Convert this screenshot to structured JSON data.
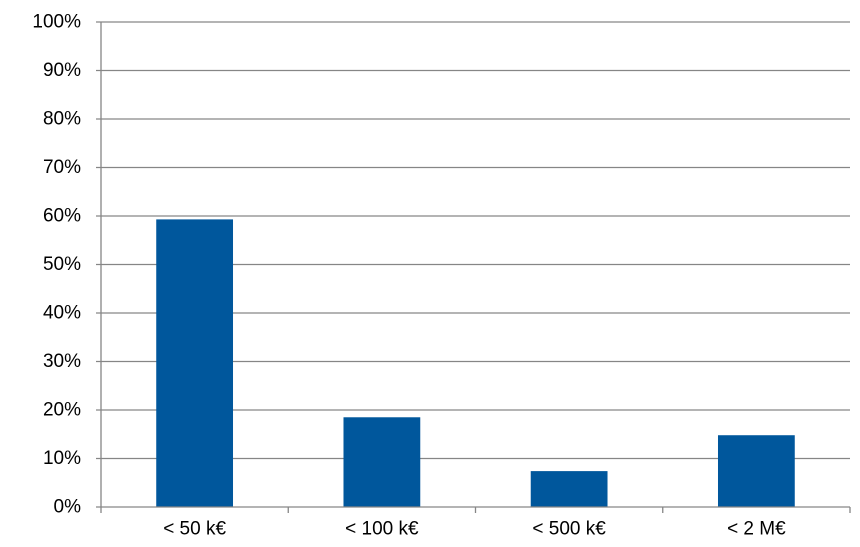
{
  "chart_data": {
    "type": "bar",
    "categories": [
      "< 50 k€",
      "< 100 k€",
      "< 500 k€",
      "< 2 M€"
    ],
    "series": [
      {
        "values": [
          59.3,
          18.5,
          7.4,
          14.8
        ]
      }
    ],
    "title": "",
    "xlabel": "",
    "ylabel": "",
    "ylim": [
      0,
      100
    ],
    "yticks": [
      "0%",
      "10%",
      "20%",
      "30%",
      "40%",
      "50%",
      "60%",
      "70%",
      "80%",
      "90%",
      "100%"
    ],
    "grid": true,
    "legend": "none",
    "colors": {
      "bar": "#00579C",
      "grid": "#868686",
      "axis": "#868686"
    }
  }
}
